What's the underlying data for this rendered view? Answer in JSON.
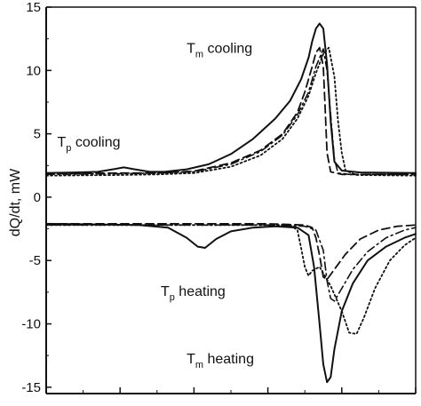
{
  "chart_data": {
    "type": "line",
    "ylabel": "dQ/dt, mW",
    "xlim": [
      0,
      100
    ],
    "ylim": [
      -15.5,
      15
    ],
    "yticks": [
      15,
      10,
      5,
      0,
      -5,
      -10,
      -15
    ],
    "grid": false,
    "line_color": "#111111",
    "series": [
      {
        "line_style": "solid",
        "points": [
          [
            0,
            1.9
          ],
          [
            8,
            1.95
          ],
          [
            14,
            2.0
          ],
          [
            18,
            2.2
          ],
          [
            21,
            2.35
          ],
          [
            24,
            2.2
          ],
          [
            28,
            2.0
          ],
          [
            32,
            2.0
          ],
          [
            38,
            2.2
          ],
          [
            44,
            2.6
          ],
          [
            50,
            3.4
          ],
          [
            56,
            4.6
          ],
          [
            62,
            6.2
          ],
          [
            66,
            7.6
          ],
          [
            69,
            9.3
          ],
          [
            71,
            11.0
          ],
          [
            72,
            12.3
          ],
          [
            73,
            13.3
          ],
          [
            74,
            13.7
          ],
          [
            75,
            13.3
          ],
          [
            76,
            10.5
          ],
          [
            77,
            6.0
          ],
          [
            78,
            2.8
          ],
          [
            80,
            2.1
          ],
          [
            85,
            1.95
          ],
          [
            100,
            1.9
          ]
        ]
      },
      {
        "line_style": "dashed",
        "points": [
          [
            0,
            1.85
          ],
          [
            20,
            1.9
          ],
          [
            30,
            1.9
          ],
          [
            40,
            2.05
          ],
          [
            50,
            2.7
          ],
          [
            58,
            3.7
          ],
          [
            64,
            5.0
          ],
          [
            68,
            6.7
          ],
          [
            70,
            8.3
          ],
          [
            72,
            10.3
          ],
          [
            73,
            11.4
          ],
          [
            74,
            11.8
          ],
          [
            75,
            10.3
          ],
          [
            75.5,
            7.0
          ],
          [
            76,
            3.5
          ],
          [
            77,
            2.0
          ],
          [
            80,
            1.8
          ],
          [
            100,
            1.8
          ]
        ]
      },
      {
        "line_style": "dashdot",
        "points": [
          [
            0,
            1.8
          ],
          [
            20,
            1.85
          ],
          [
            30,
            1.9
          ],
          [
            40,
            2.0
          ],
          [
            50,
            2.6
          ],
          [
            58,
            3.6
          ],
          [
            64,
            4.9
          ],
          [
            68,
            6.5
          ],
          [
            71,
            8.3
          ],
          [
            73,
            10.3
          ],
          [
            75,
            11.7
          ],
          [
            76,
            10.0
          ],
          [
            77,
            6.5
          ],
          [
            78,
            3.0
          ],
          [
            79,
            1.9
          ],
          [
            82,
            1.8
          ],
          [
            100,
            1.8
          ]
        ]
      },
      {
        "line_style": "dotted",
        "points": [
          [
            0,
            1.7
          ],
          [
            20,
            1.75
          ],
          [
            30,
            1.8
          ],
          [
            40,
            1.9
          ],
          [
            50,
            2.4
          ],
          [
            58,
            3.3
          ],
          [
            64,
            4.6
          ],
          [
            68,
            6.2
          ],
          [
            71,
            8.0
          ],
          [
            73,
            9.8
          ],
          [
            75,
            11.3
          ],
          [
            76.5,
            11.8
          ],
          [
            78,
            9.5
          ],
          [
            79,
            6.0
          ],
          [
            80,
            3.5
          ],
          [
            81,
            2.1
          ],
          [
            84,
            1.75
          ],
          [
            100,
            1.7
          ]
        ]
      },
      {
        "line_style": "solid",
        "points": [
          [
            0,
            -2.1
          ],
          [
            25,
            -2.2
          ],
          [
            33,
            -2.4
          ],
          [
            38,
            -3.2
          ],
          [
            41,
            -3.9
          ],
          [
            43,
            -4.0
          ],
          [
            46,
            -3.3
          ],
          [
            50,
            -2.7
          ],
          [
            56,
            -2.4
          ],
          [
            62,
            -2.3
          ],
          [
            68,
            -2.4
          ],
          [
            71,
            -3.0
          ],
          [
            72.5,
            -5.5
          ],
          [
            74,
            -10.0
          ],
          [
            75,
            -13.2
          ],
          [
            76,
            -14.6
          ],
          [
            77,
            -14.2
          ],
          [
            78,
            -12.0
          ],
          [
            80,
            -9.0
          ],
          [
            83,
            -6.8
          ],
          [
            87,
            -5.0
          ],
          [
            92,
            -3.9
          ],
          [
            97,
            -3.2
          ],
          [
            100,
            -2.9
          ]
        ]
      },
      {
        "line_style": "dashed",
        "points": [
          [
            0,
            -2.1
          ],
          [
            60,
            -2.1
          ],
          [
            70,
            -2.2
          ],
          [
            72,
            -2.4
          ],
          [
            73,
            -3.2
          ],
          [
            74,
            -4.6
          ],
          [
            75,
            -6.3
          ],
          [
            76,
            -6.5
          ],
          [
            78,
            -5.7
          ],
          [
            81,
            -4.5
          ],
          [
            85,
            -3.3
          ],
          [
            90,
            -2.6
          ],
          [
            95,
            -2.3
          ],
          [
            100,
            -2.2
          ]
        ]
      },
      {
        "line_style": "dashdot",
        "points": [
          [
            0,
            -2.2
          ],
          [
            60,
            -2.2
          ],
          [
            70,
            -2.3
          ],
          [
            73,
            -2.6
          ],
          [
            75,
            -4.2
          ],
          [
            76,
            -6.6
          ],
          [
            77,
            -8.0
          ],
          [
            78,
            -8.2
          ],
          [
            80,
            -7.2
          ],
          [
            83,
            -5.7
          ],
          [
            87,
            -4.3
          ],
          [
            92,
            -3.2
          ],
          [
            97,
            -2.6
          ],
          [
            100,
            -2.4
          ]
        ]
      },
      {
        "line_style": "dotted",
        "points": [
          [
            0,
            -2.2
          ],
          [
            50,
            -2.2
          ],
          [
            66,
            -2.2
          ],
          [
            68,
            -2.6
          ],
          [
            69,
            -4.0
          ],
          [
            70,
            -5.5
          ],
          [
            71,
            -6.2
          ],
          [
            72,
            -5.8
          ],
          [
            74,
            -5.5
          ],
          [
            77,
            -7.0
          ],
          [
            80,
            -9.0
          ],
          [
            82,
            -10.7
          ],
          [
            84,
            -10.8
          ],
          [
            86,
            -9.5
          ],
          [
            89,
            -7.2
          ],
          [
            93,
            -5.0
          ],
          [
            97,
            -3.8
          ],
          [
            100,
            -3.2
          ]
        ]
      }
    ],
    "annotations": [
      {
        "name": "tm-cooling",
        "main": "T",
        "sub": "m",
        "text": " cooling",
        "x": 38,
        "y": 11.4
      },
      {
        "name": "tp-cooling",
        "main": "T",
        "sub": "p",
        "text": " cooling",
        "x": 3,
        "y": 4.0
      },
      {
        "name": "tp-heating",
        "main": "T",
        "sub": "p",
        "text": " heating",
        "x": 31,
        "y": -7.8
      },
      {
        "name": "tm-heating",
        "main": "T",
        "sub": "m",
        "text": " heating",
        "x": 38,
        "y": -13.1
      }
    ]
  }
}
